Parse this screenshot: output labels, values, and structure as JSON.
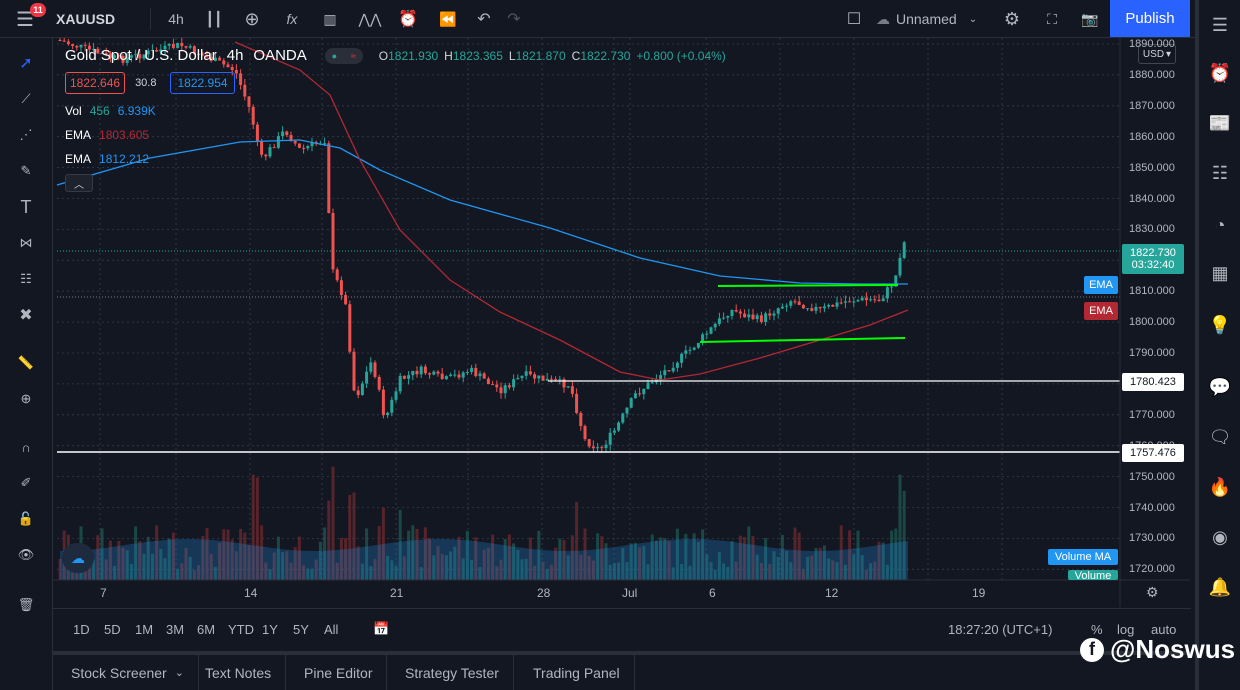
{
  "header": {
    "symbol": "XAUUSD",
    "interval": "4h",
    "layout_name": "Unnamed",
    "publish_label": "Publish",
    "menu_badge": "11"
  },
  "legend": {
    "title": "Gold Spot / U.S. Dollar",
    "interval": "4h",
    "exchange": "OANDA",
    "o_label": "O",
    "open": "1821.930",
    "h_label": "H",
    "high": "1823.365",
    "l_label": "L",
    "low": "1821.870",
    "c_label": "C",
    "close": "1822.730",
    "change": "+0.800 (+0.04%)",
    "bid": "1822.646",
    "spread": "30.8",
    "ask": "1822.954",
    "vol_label": "Vol",
    "vol_a": "456",
    "vol_b": "6.939K",
    "ema1_label": "EMA",
    "ema1_val": "1803.605",
    "ema2_label": "EMA",
    "ema2_val": "1812.212"
  },
  "y_axis": {
    "currency": "USD",
    "ticks": [
      "1890.000",
      "1880.000",
      "1870.000",
      "1860.000",
      "1850.000",
      "1840.000",
      "1830.000",
      "1820.000",
      "1810.000",
      "1800.000",
      "1790.000",
      "1780.000",
      "1770.000",
      "1760.000",
      "1750.000",
      "1740.000",
      "1730.000",
      "1720.000"
    ],
    "price_label": "1822.730",
    "countdown": "03:32:40",
    "ema_blue_label": "EMA",
    "ema_red_label": "EMA",
    "level1": "1780.423",
    "level2": "1757.476",
    "volma_label": "Volume MA",
    "volume_label": "Volume"
  },
  "x_axis": {
    "ticks": [
      "7",
      "14",
      "21",
      "28",
      "Jul",
      "6",
      "12",
      "19"
    ]
  },
  "ranges": [
    "1D",
    "5D",
    "1M",
    "3M",
    "6M",
    "YTD",
    "1Y",
    "5Y",
    "All"
  ],
  "bottom": {
    "time": "18:27:20 (UTC+1)",
    "pct": "%",
    "log": "log",
    "auto": "auto"
  },
  "panels": [
    "Stock Screener",
    "Text Notes",
    "Pine Editor",
    "Strategy Tester",
    "Trading Panel"
  ],
  "watermark": "@Noswus",
  "notif_badge": "1",
  "colors": {
    "up": "#26a69a",
    "down": "#ef5350",
    "ema_blue": "#2196f3",
    "ema_red": "#b22833",
    "channel": "#00ff00",
    "level": "#ffffff",
    "publish": "#2962ff"
  }
}
